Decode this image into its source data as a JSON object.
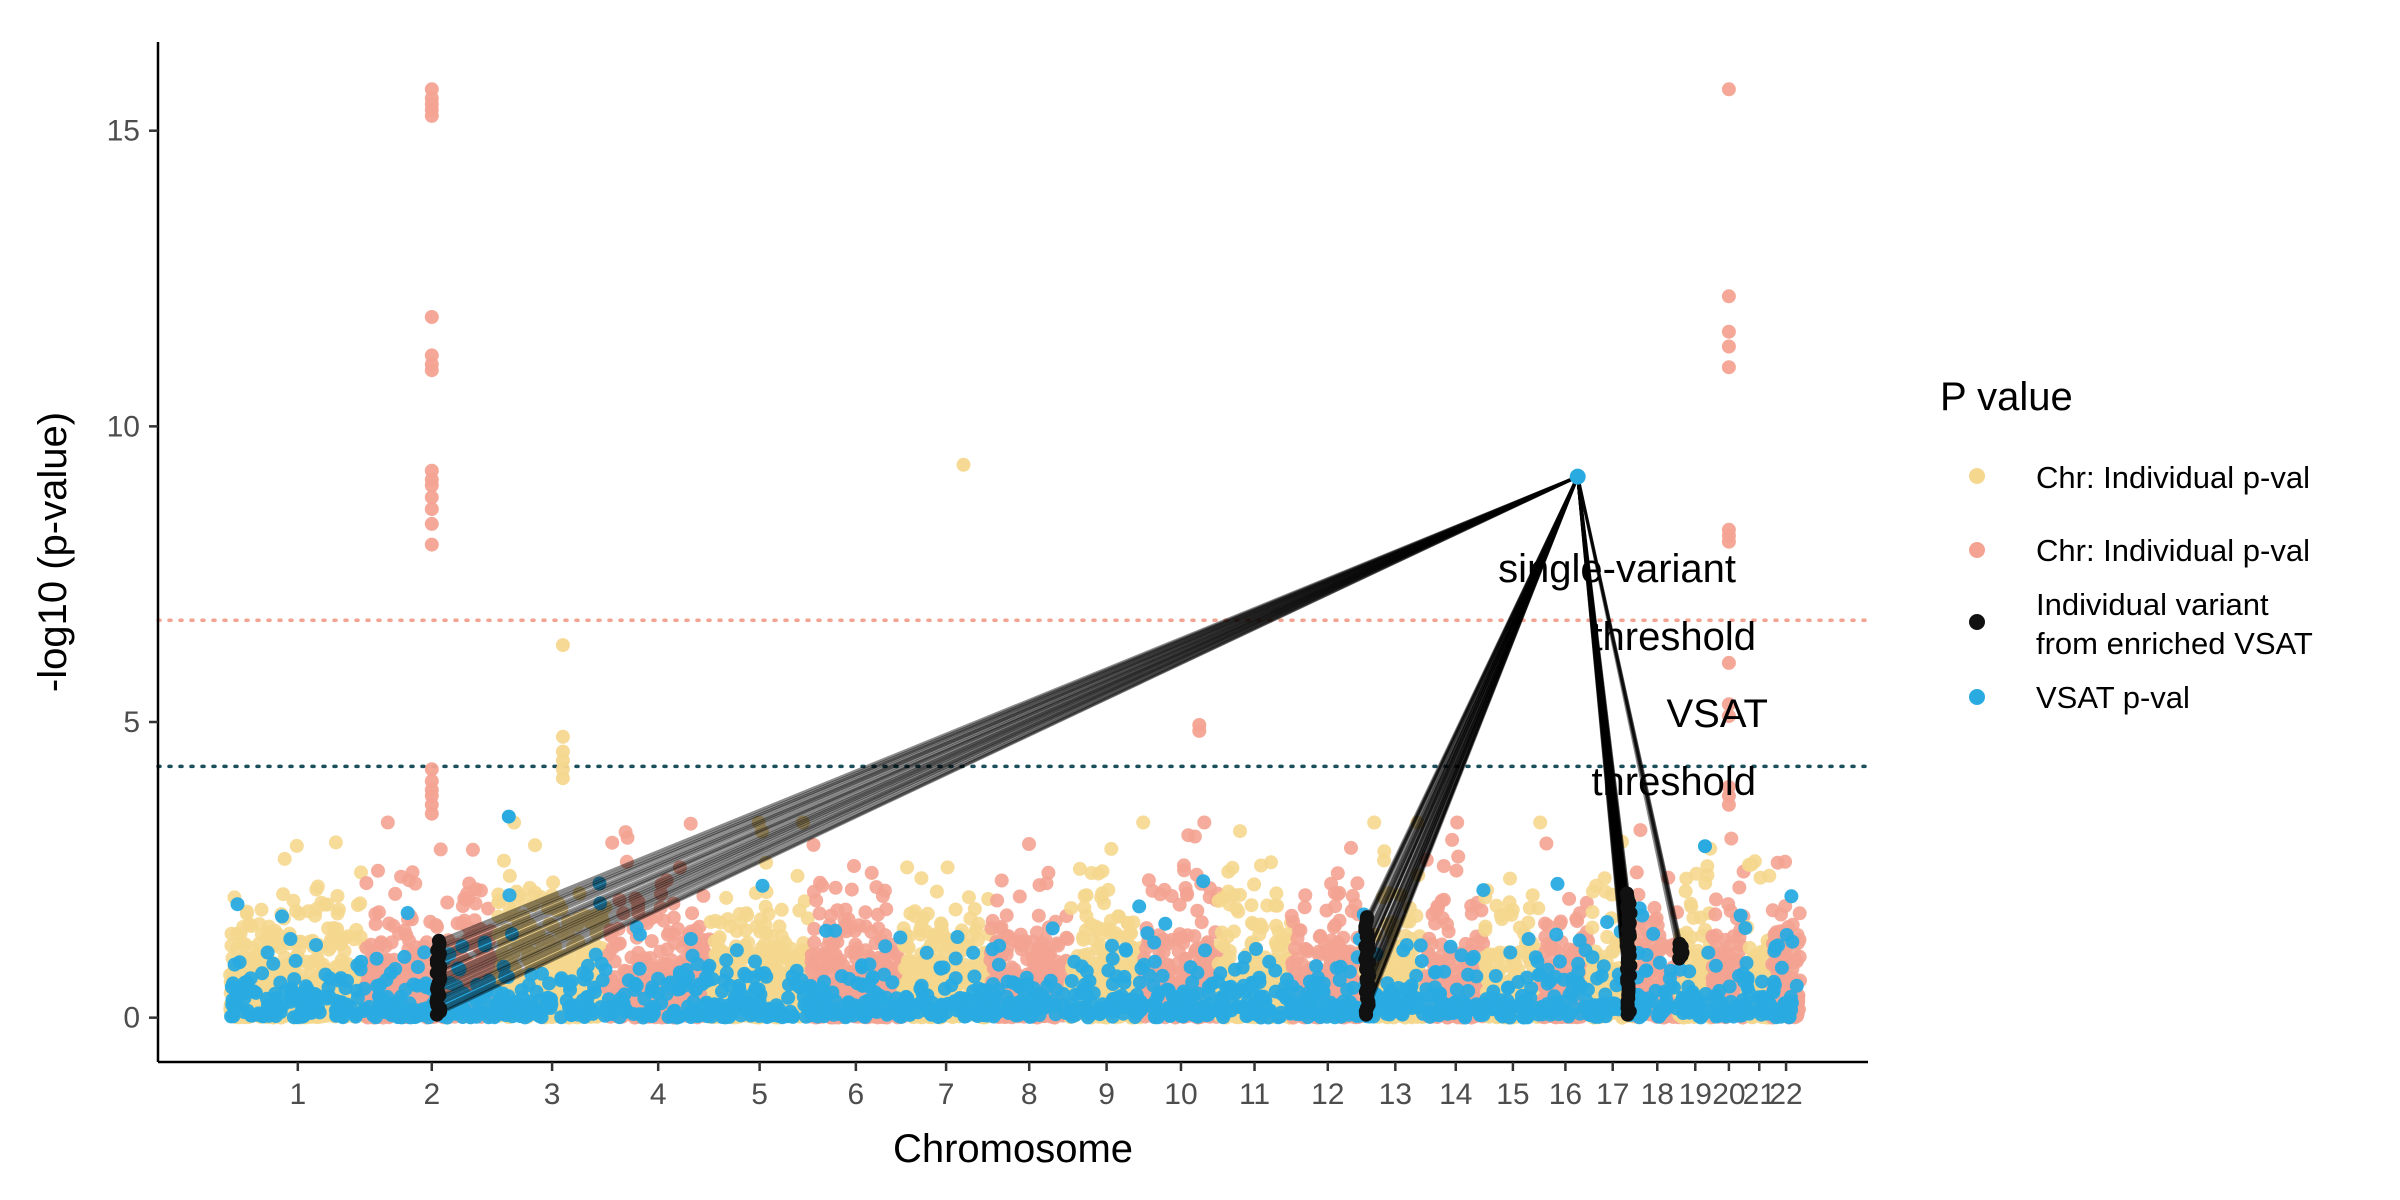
{
  "chart_data": {
    "type": "scatter",
    "xlabel": "Chromosome",
    "ylabel": "-log10 (p-value)",
    "ylim": [
      -0.75,
      16.5
    ],
    "yticks": [
      0,
      5,
      10,
      15
    ],
    "categories": [
      "1",
      "2",
      "3",
      "4",
      "5",
      "6",
      "7",
      "8",
      "9",
      "10",
      "11",
      "12",
      "13",
      "14",
      "15",
      "16",
      "17",
      "18",
      "19",
      "20",
      "21",
      "22"
    ],
    "grid": false,
    "legend": {
      "title": "P value",
      "placement": "right",
      "entries": [
        {
          "label": "Chr: Individual p-val",
          "color": "#f5d78e"
        },
        {
          "label": "Chr: Individual p-val",
          "color": "#f4a392"
        },
        {
          "label_line1": "Individual variant",
          "label_line2": "from enriched VSAT",
          "color": "#111111"
        },
        {
          "label": "VSAT p-val",
          "color": "#29abe2"
        }
      ]
    },
    "colors": {
      "odd_chromosome": "#f5d78e",
      "even_chromosome": "#f4a392",
      "vsat": "#29abe2",
      "individual_variant": "#111111",
      "single_variant_line": "#f4a392",
      "vsat_line": "#1b4f5c"
    },
    "thresholds": [
      {
        "label_line1": "single-variant",
        "label_line2": "threshold",
        "y": 6.72,
        "color": "#f4a392"
      },
      {
        "label_line1": "VSAT",
        "label_line2": "threshold",
        "y": 4.25,
        "color": "#1b4f5c"
      }
    ],
    "vsat_hit": {
      "chromosome": "16",
      "pos": 0.75,
      "y": 9.15
    },
    "enriched_variant_clusters": [
      {
        "chromosome": "2",
        "pos": 0.55,
        "y_min": 0.05,
        "y_max": 1.3
      },
      {
        "chromosome": "13",
        "pos": 0.05,
        "y_min": 0.05,
        "y_max": 1.7
      },
      {
        "chromosome": "17",
        "pos": 0.85,
        "y_min": 0.05,
        "y_max": 2.1
      },
      {
        "chromosome": "19",
        "pos": 0.05,
        "y_min": 1.0,
        "y_max": 1.25
      }
    ],
    "notable_peaks": [
      {
        "chromosome": "2",
        "pos": 0.5,
        "y_values": [
          15.7,
          15.55,
          15.45,
          15.35,
          15.25,
          11.85,
          11.2,
          11.05,
          10.95,
          9.25,
          9.1,
          9.0,
          8.8,
          8.6,
          8.35,
          8.0,
          4.2,
          4.0,
          3.85,
          3.75,
          3.6,
          3.45
        ]
      },
      {
        "chromosome": "3",
        "pos": 0.6,
        "y_values": [
          6.3,
          4.75,
          4.5,
          4.35,
          4.2,
          4.05
        ]
      },
      {
        "chromosome": "7",
        "pos": 0.7,
        "y_values": [
          9.35
        ]
      },
      {
        "chromosome": "20",
        "pos": 0.5,
        "y_values": [
          15.7,
          12.2,
          11.6,
          11.35,
          11.0,
          8.25,
          8.15,
          8.05,
          6.0,
          5.3,
          5.1,
          3.9,
          3.75,
          3.6
        ]
      },
      {
        "chromosome": "10",
        "pos": 0.75,
        "y_values": [
          4.95,
          4.85
        ]
      }
    ],
    "isolated_vsat_points": [
      {
        "chromosome": "3",
        "pos": 0.1,
        "y": 3.4
      },
      {
        "chromosome": "19",
        "pos": 0.8,
        "y": 2.9
      }
    ]
  }
}
